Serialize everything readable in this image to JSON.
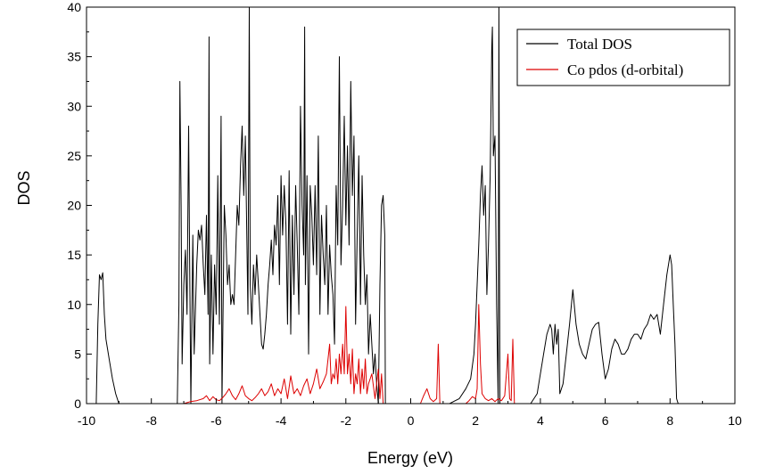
{
  "chart_data": {
    "type": "line",
    "title": "",
    "xlabel": "Energy (eV)",
    "ylabel": "DOS",
    "xlim": [
      -10,
      10
    ],
    "ylim": [
      0,
      40
    ],
    "x_ticks": [
      -10,
      -8,
      -6,
      -4,
      -2,
      0,
      2,
      4,
      6,
      8,
      10
    ],
    "y_ticks": [
      0,
      5,
      10,
      15,
      20,
      25,
      30,
      35,
      40
    ],
    "x_tick_labels": [
      "-10",
      "-8",
      "-6",
      "-4",
      "-2",
      "0",
      "2",
      "4",
      "6",
      "8",
      "10"
    ],
    "y_tick_labels": [
      "0",
      "5",
      "10",
      "15",
      "20",
      "25",
      "30",
      "35",
      "40"
    ],
    "grid": false,
    "legend_position": "top-right",
    "series": [
      {
        "name": "Total DOS",
        "color": "#000000",
        "points": [
          [
            -10,
            0
          ],
          [
            -9.7,
            0
          ],
          [
            -9.65,
            8
          ],
          [
            -9.6,
            13
          ],
          [
            -9.55,
            12.5
          ],
          [
            -9.5,
            13.2
          ],
          [
            -9.45,
            9
          ],
          [
            -9.4,
            6.5
          ],
          [
            -9.3,
            4.5
          ],
          [
            -9.2,
            2.5
          ],
          [
            -9.1,
            1
          ],
          [
            -9.0,
            0
          ],
          [
            -7.2,
            0
          ],
          [
            -7.15,
            10
          ],
          [
            -7.12,
            32.5
          ],
          [
            -7.08,
            20
          ],
          [
            -7.05,
            4
          ],
          [
            -7.0,
            12
          ],
          [
            -6.95,
            15.5
          ],
          [
            -6.9,
            9
          ],
          [
            -6.85,
            28
          ],
          [
            -6.82,
            15
          ],
          [
            -6.78,
            0
          ],
          [
            -6.72,
            17
          ],
          [
            -6.68,
            5
          ],
          [
            -6.6,
            14
          ],
          [
            -6.55,
            17.5
          ],
          [
            -6.5,
            16.5
          ],
          [
            -6.45,
            18
          ],
          [
            -6.4,
            14
          ],
          [
            -6.35,
            11
          ],
          [
            -6.3,
            19
          ],
          [
            -6.25,
            9
          ],
          [
            -6.22,
            37
          ],
          [
            -6.2,
            4
          ],
          [
            -6.15,
            15
          ],
          [
            -6.1,
            5
          ],
          [
            -6.05,
            14
          ],
          [
            -6.0,
            9
          ],
          [
            -5.95,
            23
          ],
          [
            -5.9,
            8
          ],
          [
            -5.85,
            29
          ],
          [
            -5.82,
            0
          ],
          [
            -5.75,
            20
          ],
          [
            -5.7,
            17
          ],
          [
            -5.65,
            12
          ],
          [
            -5.6,
            14
          ],
          [
            -5.55,
            10
          ],
          [
            -5.5,
            11
          ],
          [
            -5.45,
            10
          ],
          [
            -5.4,
            15
          ],
          [
            -5.35,
            20
          ],
          [
            -5.3,
            18
          ],
          [
            -5.25,
            24
          ],
          [
            -5.2,
            28
          ],
          [
            -5.15,
            21
          ],
          [
            -5.1,
            27
          ],
          [
            -5.05,
            16
          ],
          [
            -5.02,
            9
          ],
          [
            -4.98,
            40
          ],
          [
            -4.95,
            12
          ],
          [
            -4.9,
            8
          ],
          [
            -4.85,
            14
          ],
          [
            -4.8,
            11
          ],
          [
            -4.75,
            15
          ],
          [
            -4.7,
            12
          ],
          [
            -4.65,
            9
          ],
          [
            -4.6,
            6
          ],
          [
            -4.55,
            5.5
          ],
          [
            -4.5,
            7
          ],
          [
            -4.45,
            9
          ],
          [
            -4.4,
            12
          ],
          [
            -4.35,
            14
          ],
          [
            -4.3,
            16.5
          ],
          [
            -4.25,
            13
          ],
          [
            -4.2,
            18
          ],
          [
            -4.15,
            16
          ],
          [
            -4.1,
            21
          ],
          [
            -4.05,
            12
          ],
          [
            -4.0,
            23
          ],
          [
            -3.95,
            17
          ],
          [
            -3.9,
            22
          ],
          [
            -3.85,
            18
          ],
          [
            -3.8,
            8
          ],
          [
            -3.75,
            23.5
          ],
          [
            -3.7,
            7
          ],
          [
            -3.65,
            19
          ],
          [
            -3.6,
            11
          ],
          [
            -3.55,
            22
          ],
          [
            -3.5,
            16
          ],
          [
            -3.45,
            9
          ],
          [
            -3.4,
            30
          ],
          [
            -3.35,
            20
          ],
          [
            -3.3,
            15
          ],
          [
            -3.27,
            38
          ],
          [
            -3.25,
            12
          ],
          [
            -3.2,
            23
          ],
          [
            -3.15,
            5
          ],
          [
            -3.1,
            22
          ],
          [
            -3.05,
            19
          ],
          [
            -3.0,
            14
          ],
          [
            -2.95,
            22
          ],
          [
            -2.9,
            13
          ],
          [
            -2.85,
            27
          ],
          [
            -2.8,
            9
          ],
          [
            -2.75,
            19
          ],
          [
            -2.7,
            15
          ],
          [
            -2.65,
            12
          ],
          [
            -2.6,
            20
          ],
          [
            -2.55,
            9
          ],
          [
            -2.5,
            16
          ],
          [
            -2.45,
            13
          ],
          [
            -2.4,
            11
          ],
          [
            -2.35,
            6
          ],
          [
            -2.3,
            22
          ],
          [
            -2.25,
            16
          ],
          [
            -2.2,
            35
          ],
          [
            -2.15,
            14
          ],
          [
            -2.1,
            20
          ],
          [
            -2.05,
            29
          ],
          [
            -2.0,
            18
          ],
          [
            -1.95,
            26
          ],
          [
            -1.9,
            16
          ],
          [
            -1.85,
            32.5
          ],
          [
            -1.8,
            21
          ],
          [
            -1.75,
            27
          ],
          [
            -1.7,
            8
          ],
          [
            -1.65,
            17
          ],
          [
            -1.6,
            25
          ],
          [
            -1.55,
            10
          ],
          [
            -1.5,
            23
          ],
          [
            -1.45,
            15
          ],
          [
            -1.4,
            10
          ],
          [
            -1.35,
            13
          ],
          [
            -1.3,
            5
          ],
          [
            -1.25,
            9
          ],
          [
            -1.2,
            6
          ],
          [
            -1.15,
            3
          ],
          [
            -1.1,
            5
          ],
          [
            -1.05,
            2
          ],
          [
            -1.0,
            0
          ],
          [
            -0.95,
            12
          ],
          [
            -0.9,
            20
          ],
          [
            -0.85,
            21
          ],
          [
            -0.8,
            17
          ],
          [
            -0.78,
            0
          ],
          [
            1.2,
            0
          ],
          [
            1.5,
            0.5
          ],
          [
            1.7,
            1.5
          ],
          [
            1.85,
            2.5
          ],
          [
            1.95,
            5
          ],
          [
            2.0,
            8
          ],
          [
            2.05,
            12
          ],
          [
            2.1,
            16
          ],
          [
            2.15,
            21
          ],
          [
            2.2,
            24
          ],
          [
            2.25,
            19
          ],
          [
            2.3,
            22
          ],
          [
            2.35,
            11
          ],
          [
            2.4,
            16
          ],
          [
            2.45,
            23
          ],
          [
            2.5,
            36
          ],
          [
            2.52,
            38
          ],
          [
            2.55,
            25
          ],
          [
            2.6,
            27
          ],
          [
            2.65,
            10
          ],
          [
            2.7,
            0
          ],
          [
            2.72,
            40
          ],
          [
            2.75,
            0
          ],
          [
            3.7,
            0
          ],
          [
            3.9,
            1
          ],
          [
            4.0,
            3
          ],
          [
            4.1,
            5
          ],
          [
            4.2,
            7
          ],
          [
            4.3,
            8
          ],
          [
            4.35,
            7.5
          ],
          [
            4.4,
            5
          ],
          [
            4.45,
            8
          ],
          [
            4.5,
            6
          ],
          [
            4.55,
            7.5
          ],
          [
            4.6,
            1
          ],
          [
            4.7,
            2
          ],
          [
            4.8,
            5
          ],
          [
            4.9,
            8
          ],
          [
            5.0,
            11.5
          ],
          [
            5.1,
            8
          ],
          [
            5.2,
            6
          ],
          [
            5.3,
            5
          ],
          [
            5.4,
            4.5
          ],
          [
            5.5,
            6
          ],
          [
            5.6,
            7.5
          ],
          [
            5.7,
            8
          ],
          [
            5.8,
            8.2
          ],
          [
            5.9,
            5
          ],
          [
            6.0,
            2.5
          ],
          [
            6.1,
            3.5
          ],
          [
            6.2,
            5.5
          ],
          [
            6.3,
            6.5
          ],
          [
            6.4,
            6
          ],
          [
            6.5,
            5
          ],
          [
            6.6,
            5
          ],
          [
            6.7,
            5.5
          ],
          [
            6.8,
            6.5
          ],
          [
            6.9,
            7
          ],
          [
            7.0,
            7
          ],
          [
            7.1,
            6.5
          ],
          [
            7.2,
            7.5
          ],
          [
            7.3,
            8
          ],
          [
            7.4,
            9
          ],
          [
            7.5,
            8.5
          ],
          [
            7.6,
            9
          ],
          [
            7.7,
            7
          ],
          [
            7.8,
            10
          ],
          [
            7.9,
            13
          ],
          [
            8.0,
            15
          ],
          [
            8.05,
            14
          ],
          [
            8.1,
            10
          ],
          [
            8.15,
            6
          ],
          [
            8.2,
            0.5
          ],
          [
            8.25,
            0
          ],
          [
            10,
            0
          ]
        ]
      },
      {
        "name": "Co pdos (d-orbital)",
        "color": "#dd0000",
        "points": [
          [
            -10,
            0
          ],
          [
            -7,
            0
          ],
          [
            -6.8,
            0.2
          ],
          [
            -6.6,
            0.3
          ],
          [
            -6.4,
            0.5
          ],
          [
            -6.3,
            0.8
          ],
          [
            -6.2,
            0.3
          ],
          [
            -6.1,
            0.7
          ],
          [
            -6.0,
            0.4
          ],
          [
            -5.9,
            0.3
          ],
          [
            -5.8,
            0.6
          ],
          [
            -5.7,
            1
          ],
          [
            -5.6,
            1.5
          ],
          [
            -5.5,
            0.8
          ],
          [
            -5.4,
            0.4
          ],
          [
            -5.3,
            1
          ],
          [
            -5.2,
            1.8
          ],
          [
            -5.1,
            0.8
          ],
          [
            -5.0,
            0.5
          ],
          [
            -4.9,
            0.3
          ],
          [
            -4.8,
            0.6
          ],
          [
            -4.7,
            1
          ],
          [
            -4.6,
            1.5
          ],
          [
            -4.5,
            0.8
          ],
          [
            -4.4,
            1.2
          ],
          [
            -4.3,
            2
          ],
          [
            -4.2,
            0.8
          ],
          [
            -4.1,
            1.5
          ],
          [
            -4.0,
            1
          ],
          [
            -3.9,
            2.5
          ],
          [
            -3.8,
            0.5
          ],
          [
            -3.7,
            2.8
          ],
          [
            -3.6,
            1
          ],
          [
            -3.5,
            1.5
          ],
          [
            -3.4,
            0.8
          ],
          [
            -3.3,
            1.8
          ],
          [
            -3.2,
            2.5
          ],
          [
            -3.1,
            1
          ],
          [
            -3.0,
            2
          ],
          [
            -2.9,
            3.5
          ],
          [
            -2.8,
            1.5
          ],
          [
            -2.7,
            2.2
          ],
          [
            -2.6,
            3
          ],
          [
            -2.5,
            6
          ],
          [
            -2.45,
            2
          ],
          [
            -2.4,
            3
          ],
          [
            -2.35,
            2.5
          ],
          [
            -2.3,
            4.5
          ],
          [
            -2.25,
            2
          ],
          [
            -2.2,
            5
          ],
          [
            -2.15,
            3
          ],
          [
            -2.1,
            6
          ],
          [
            -2.05,
            3
          ],
          [
            -2.0,
            9.8
          ],
          [
            -1.95,
            3
          ],
          [
            -1.9,
            5
          ],
          [
            -1.85,
            2
          ],
          [
            -1.8,
            5.5
          ],
          [
            -1.75,
            1
          ],
          [
            -1.7,
            3
          ],
          [
            -1.65,
            2
          ],
          [
            -1.6,
            4.5
          ],
          [
            -1.55,
            1
          ],
          [
            -1.5,
            3.5
          ],
          [
            -1.45,
            1.5
          ],
          [
            -1.4,
            4.5
          ],
          [
            -1.35,
            1
          ],
          [
            -1.3,
            2
          ],
          [
            -1.2,
            3
          ],
          [
            -1.1,
            0.5
          ],
          [
            -1.0,
            3.5
          ],
          [
            -0.95,
            0.5
          ],
          [
            -0.9,
            3
          ],
          [
            -0.85,
            0
          ],
          [
            0.3,
            0
          ],
          [
            0.4,
            0.8
          ],
          [
            0.5,
            1.5
          ],
          [
            0.6,
            0.5
          ],
          [
            0.7,
            0.2
          ],
          [
            0.8,
            0.5
          ],
          [
            0.85,
            6
          ],
          [
            0.9,
            0
          ],
          [
            1.7,
            0
          ],
          [
            1.8,
            0.3
          ],
          [
            1.9,
            0.7
          ],
          [
            2.0,
            0.5
          ],
          [
            2.05,
            1.5
          ],
          [
            2.1,
            10
          ],
          [
            2.15,
            4
          ],
          [
            2.2,
            1
          ],
          [
            2.3,
            0.5
          ],
          [
            2.4,
            0.3
          ],
          [
            2.5,
            0.5
          ],
          [
            2.6,
            0.2
          ],
          [
            2.7,
            0.5
          ],
          [
            2.8,
            0.3
          ],
          [
            2.9,
            0.8
          ],
          [
            3.0,
            5
          ],
          [
            3.05,
            0.5
          ],
          [
            3.1,
            0.3
          ],
          [
            3.15,
            6.5
          ],
          [
            3.2,
            0
          ],
          [
            10,
            0
          ]
        ]
      }
    ]
  }
}
